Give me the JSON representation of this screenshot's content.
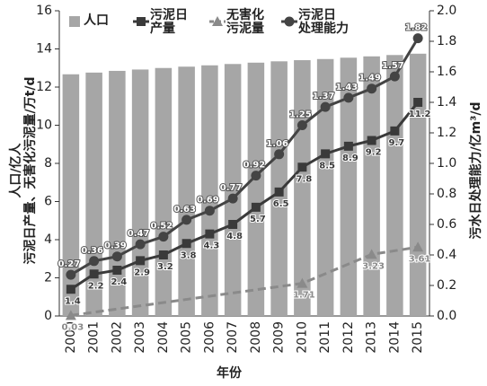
{
  "chart_data": {
    "type": "bar-line",
    "x_label": "年份",
    "y_label": [
      "人口/亿人",
      "污泥日产量、无害化污泥量/万t/d"
    ],
    "y2_label": "污水日处理能力/亿m³/d",
    "categories": [
      "2000",
      "2001",
      "2002",
      "2003",
      "2004",
      "2005",
      "2006",
      "2007",
      "2008",
      "2009",
      "2010",
      "2011",
      "2012",
      "2013",
      "2014",
      "2015"
    ],
    "ylim": [
      0,
      16
    ],
    "yticks": [
      0,
      2,
      4,
      6,
      8,
      10,
      12,
      14,
      16
    ],
    "y2lim": [
      0,
      2
    ],
    "y2ticks": [
      {
        "value": 0,
        "label": "0.0"
      },
      {
        "value": 0.2,
        "label": "0.2"
      },
      {
        "value": 0.4,
        "label": "0.4"
      },
      {
        "value": 0.6,
        "label": "0.6"
      },
      {
        "value": 0.8,
        "label": "0.8"
      },
      {
        "value": 1,
        "label": "1.0"
      },
      {
        "value": 1.2,
        "label": "1.2"
      },
      {
        "value": 1.4,
        "label": "1.4"
      },
      {
        "value": 1.6,
        "label": "1.6"
      },
      {
        "value": 1.8,
        "label": "1.8"
      },
      {
        "value": 2,
        "label": "2.0"
      }
    ],
    "series": [
      {
        "name": "人口",
        "kind": "bar",
        "color": "#a6a6a6",
        "values": [
          12.67,
          12.76,
          12.85,
          12.92,
          13.0,
          13.07,
          13.14,
          13.21,
          13.28,
          13.35,
          13.41,
          13.47,
          13.54,
          13.61,
          13.68,
          13.75
        ]
      },
      {
        "name": "污泥日\n产量",
        "kind": "line",
        "marker": "square",
        "linestyle": "solid",
        "color": "#3a3a3a",
        "values": [
          1.4,
          2.2,
          2.4,
          2.9,
          3.2,
          3.8,
          4.3,
          4.8,
          5.7,
          6.5,
          7.8,
          8.5,
          8.9,
          9.2,
          9.7,
          11.2
        ]
      },
      {
        "name": "无害化\n污泥量",
        "kind": "line",
        "marker": "triangle",
        "linestyle": "dashed",
        "color": "#8a8a8a",
        "x": [
          "2000",
          "2010",
          "2013",
          "2015"
        ],
        "values": [
          0.03,
          1.71,
          3.23,
          3.61
        ]
      },
      {
        "name": "污泥日\n处理能力",
        "kind": "line",
        "marker": "circle",
        "linestyle": "solid",
        "color": "#444444",
        "axis": "y2",
        "values": [
          0.27,
          0.36,
          0.39,
          0.47,
          0.52,
          0.63,
          0.69,
          0.77,
          0.92,
          1.06,
          1.25,
          1.37,
          1.43,
          1.49,
          1.57,
          1.82
        ]
      }
    ]
  }
}
